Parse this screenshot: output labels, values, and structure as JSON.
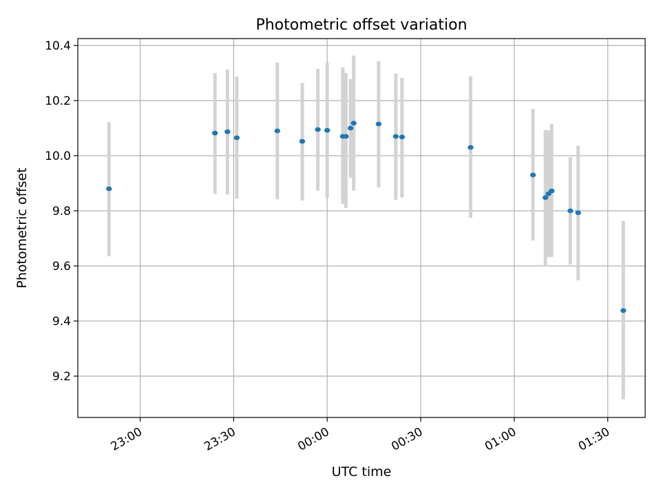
{
  "chart_data": {
    "type": "scatter",
    "title": "Photometric offset variation",
    "xlabel": "UTC time",
    "ylabel": "Photometric offset",
    "x_axis_type": "time",
    "xlim": [
      "22:40",
      "01:42"
    ],
    "ylim": [
      9.05,
      10.425
    ],
    "grid": true,
    "x_ticks": [
      "23:00",
      "23:30",
      "00:00",
      "00:30",
      "01:00",
      "01:30"
    ],
    "y_ticks": [
      "9.2",
      "9.4",
      "9.6",
      "9.8",
      "10.0",
      "10.2",
      "10.4"
    ],
    "colors": {
      "points": "#1f77b4",
      "error_bars": "#d3d3d3",
      "grid": "#b0b0b0"
    },
    "series": [
      {
        "x": [
          "22:50:00",
          "23:24:00",
          "23:28:00",
          "23:31:00",
          "23:44:00",
          "23:52:00",
          "23:57:00",
          "00:00:00",
          "00:05:00",
          "00:06:00",
          "00:07:30",
          "00:08:30",
          "00:16:30",
          "00:22:00",
          "00:24:00",
          "00:46:00",
          "01:06:00",
          "01:10:00",
          "01:11:00",
          "01:12:00",
          "01:18:00",
          "01:20:30",
          "01:35:00"
        ],
        "y": [
          9.88,
          10.082,
          10.087,
          10.065,
          10.09,
          10.052,
          10.095,
          10.092,
          10.07,
          10.07,
          10.1,
          10.118,
          10.115,
          10.07,
          10.068,
          10.03,
          9.93,
          9.848,
          9.862,
          9.872,
          9.8,
          9.793,
          9.438
        ],
        "yerr_low": [
          0.245,
          0.22,
          0.228,
          0.222,
          0.248,
          0.215,
          0.222,
          0.245,
          0.245,
          0.26,
          0.18,
          0.245,
          0.23,
          0.23,
          0.22,
          0.255,
          0.238,
          0.25,
          0.23,
          0.24,
          0.195,
          0.245,
          0.322
        ],
        "yerr_high": [
          0.242,
          0.218,
          0.226,
          0.222,
          0.248,
          0.212,
          0.22,
          0.245,
          0.25,
          0.23,
          0.178,
          0.245,
          0.228,
          0.228,
          0.215,
          0.258,
          0.24,
          0.245,
          0.23,
          0.243,
          0.195,
          0.243,
          0.325
        ]
      }
    ]
  }
}
